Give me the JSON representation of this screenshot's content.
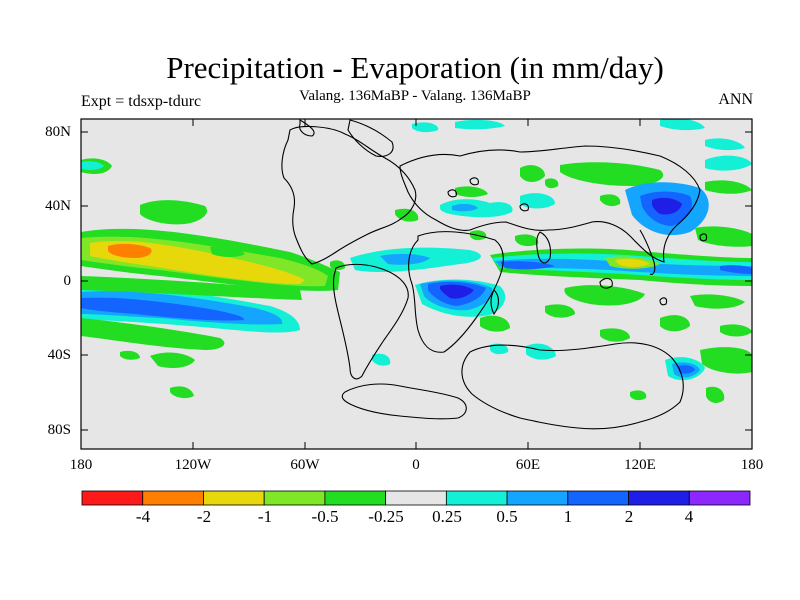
{
  "title": "Precipitation - Evaporation (in mm/day)",
  "subtitle": "Valang. 136MaBP - Valang.  136MaBP",
  "left_label": "Expt = tdsxp-tdurc",
  "right_label": "ANN",
  "axes": {
    "lat_ticks": [
      "80N",
      "40N",
      "0",
      "40S",
      "80S"
    ],
    "lon_ticks": [
      "180",
      "120W",
      "60W",
      "0",
      "60E",
      "120E",
      "180"
    ]
  },
  "colorbar": {
    "colors": [
      "#ff1a1a",
      "#ff7f00",
      "#e6d80a",
      "#7fe628",
      "#22dd22",
      "#e6e6e6",
      "#14f0d6",
      "#14a6ff",
      "#1464ff",
      "#1e1ee6",
      "#8c28ff"
    ],
    "labels": [
      "-4",
      "-2",
      "-1",
      "-0.5",
      "-0.25",
      "0.25",
      "0.5",
      "1",
      "2",
      "4"
    ]
  },
  "colors": {
    "ocean_background": "#e6e6e6",
    "coastline": "#000000"
  }
}
